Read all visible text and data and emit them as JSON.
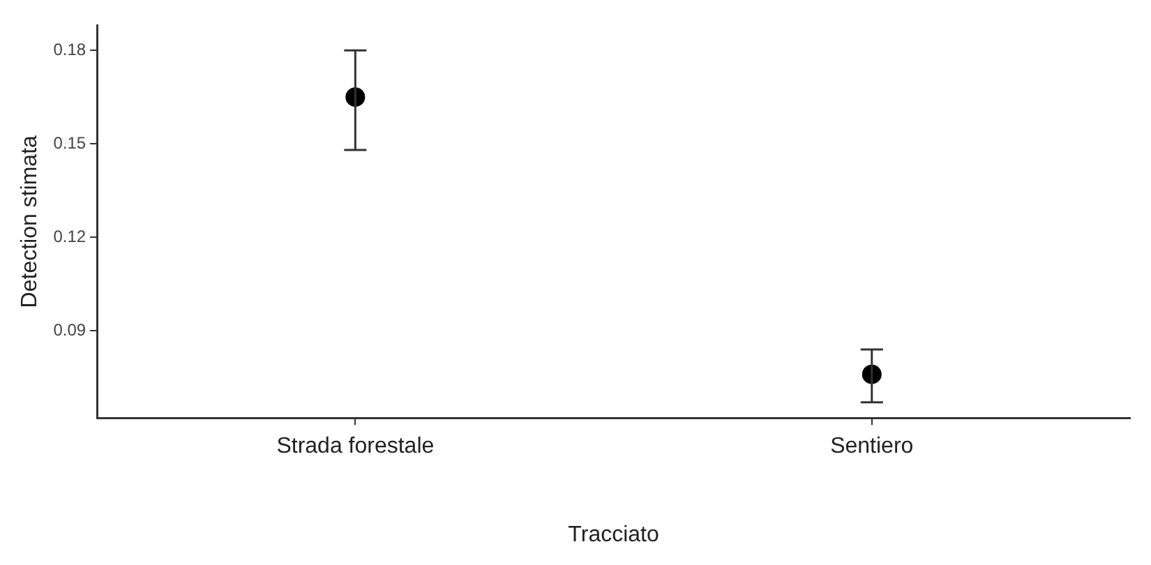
{
  "chart_data": {
    "type": "scatter",
    "xlabel": "Tracciato",
    "ylabel": "Detection stimata",
    "categories": [
      "Strada forestale",
      "Sentiero"
    ],
    "values": [
      0.165,
      0.076
    ],
    "errors": [
      [
        0.148,
        0.18
      ],
      [
        0.067,
        0.084
      ]
    ],
    "color": "#000000",
    "marker": "circle",
    "ylim": [
      0.062,
      0.188
    ],
    "yticks": [
      0.09,
      0.12,
      0.15,
      0.18
    ],
    "grid": false,
    "legend": false
  }
}
